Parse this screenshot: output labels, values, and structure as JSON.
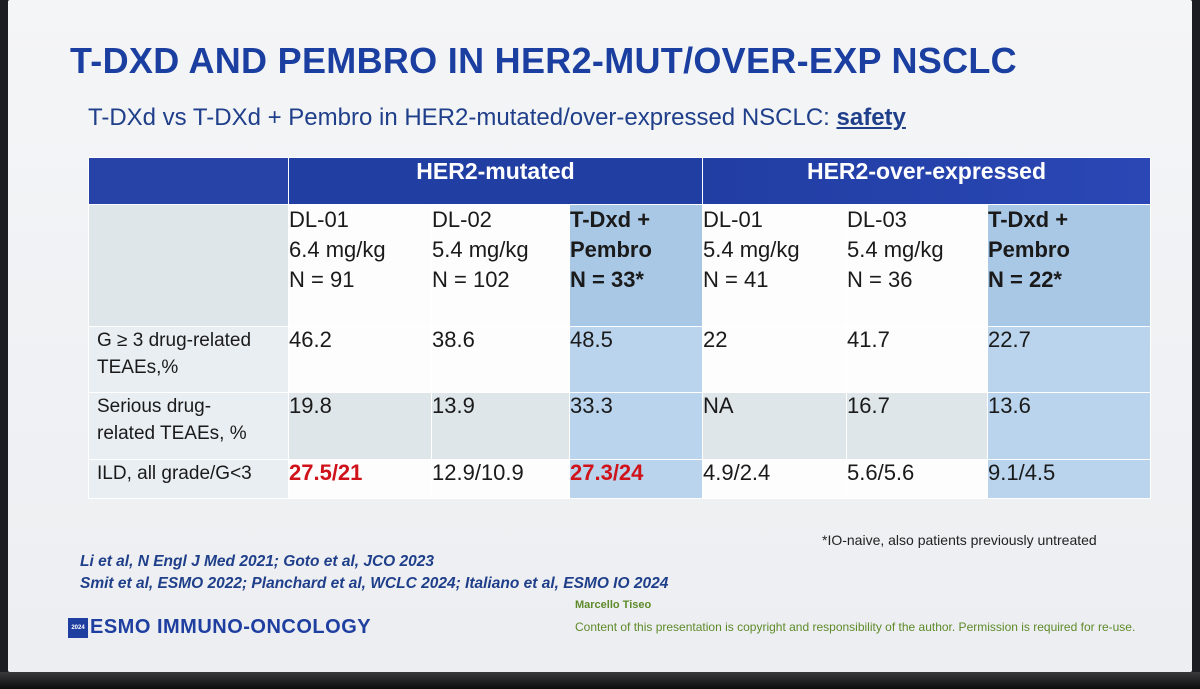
{
  "title": "T-DXD AND PEMBRO IN HER2-MUT/OVER-EXP NSCLC",
  "subtitle": {
    "text": "T-DXd vs T-DXd + Pembro in HER2-mutated/over-expressed NSCLC: ",
    "emphasis": "safety"
  },
  "table": {
    "group_headers": [
      "HER2-mutated",
      "HER2-over-expressed"
    ],
    "columns": [
      {
        "line1": "DL-01",
        "line2": "6.4 mg/kg",
        "line3": "N = 91"
      },
      {
        "line1": "DL-02",
        "line2": "5.4 mg/kg",
        "line3": "N = 102"
      },
      {
        "line1": "T-Dxd +",
        "line2": "Pembro",
        "line3": "N = 33*"
      },
      {
        "line1": "DL-01",
        "line2": "5.4 mg/kg",
        "line3": "N = 41"
      },
      {
        "line1": "DL-03",
        "line2": "5.4 mg/kg",
        "line3": "N = 36"
      },
      {
        "line1": "T-Dxd +",
        "line2": "Pembro",
        "line3": "N = 22*"
      }
    ],
    "rows": [
      {
        "label_line1": "G ≥ 3 drug-related",
        "label_line2": "TEAEs,%",
        "values": [
          "46.2",
          "38.6",
          "48.5",
          "22",
          "41.7",
          "22.7"
        ]
      },
      {
        "label_line1": "Serious drug-",
        "label_line2": "related TEAEs, %",
        "values": [
          "19.8",
          "13.9",
          "33.3",
          "NA",
          "16.7",
          "13.6"
        ]
      },
      {
        "label_line1": "ILD, all grade/G<3",
        "label_line2": "",
        "values": [
          "27.5/21",
          "12.9/10.9",
          "27.3/24",
          "4.9/2.4",
          "5.6/5.6",
          "9.1/4.5"
        ]
      }
    ],
    "highlight_color": "#d0131b",
    "header_color": "#213ea3"
  },
  "footnote": "*IO-naive, also patients previously untreated",
  "references": [
    "Li et al, N Engl J Med 2021; Goto et al, JCO 2023",
    "Smit et al, ESMO 2022; Planchard et al, WCLC 2024; Italiano et al, ESMO IO 2024"
  ],
  "logo": {
    "year": "2024",
    "brand": "ESMO IMMUNO-ONCOLOGY"
  },
  "author": "Marcello Tiseo",
  "copyright": "Content of this presentation is copyright and responsibility of the author. Permission is required for re-use."
}
